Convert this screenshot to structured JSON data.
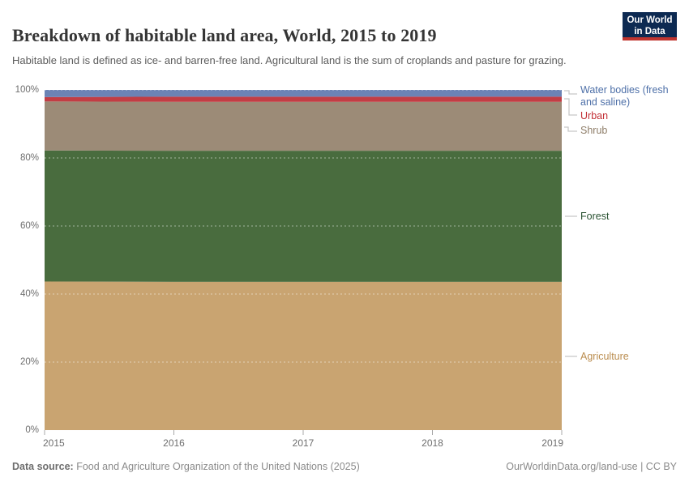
{
  "header": {
    "title": "Breakdown of habitable land area, World, 2015 to 2019",
    "subtitle": "Habitable land is defined as ice- and barren-free land. Agricultural land is the sum of croplands and pasture for grazing.",
    "logo": {
      "line1": "Our World",
      "line2": "in Data",
      "bg_color": "#0d2a52",
      "stripe_color": "#c0352f"
    }
  },
  "chart_data": {
    "type": "area",
    "stacked": true,
    "title": "Breakdown of habitable land area, World, 2015 to 2019",
    "x": [
      2015,
      2016,
      2017,
      2018,
      2019
    ],
    "x_tick_labels": [
      "2015",
      "2016",
      "2017",
      "2018",
      "2019"
    ],
    "y_tick_labels": [
      "0%",
      "20%",
      "40%",
      "60%",
      "80%",
      "100%"
    ],
    "y_tick_values": [
      0,
      20,
      40,
      60,
      80,
      100
    ],
    "ylim": [
      0,
      100
    ],
    "unit": "%",
    "grid": "horizontal-dashed",
    "legend_position": "right",
    "series": [
      {
        "name": "Agriculture",
        "values": [
          43.7,
          43.6,
          43.6,
          43.6,
          43.6
        ],
        "color": "#c9a471",
        "label_color": "#ba8c4e"
      },
      {
        "name": "Forest",
        "values": [
          38.5,
          38.5,
          38.5,
          38.5,
          38.5
        ],
        "color": "#496c3e",
        "label_color": "#2a5232"
      },
      {
        "name": "Shrub",
        "values": [
          14.4,
          14.4,
          14.4,
          14.4,
          14.4
        ],
        "color": "#9c8b77",
        "label_color": "#8e7d68"
      },
      {
        "name": "Urban",
        "values": [
          1.3,
          1.5,
          1.5,
          1.5,
          1.5
        ],
        "color": "#c23d44",
        "label_color": "#c22f35"
      },
      {
        "name": "Water bodies (fresh and saline)",
        "values": [
          2.1,
          2.0,
          2.0,
          2.0,
          2.0
        ],
        "color": "#6c83b5",
        "label_color": "#4e70a8",
        "label_lines": [
          "Water bodies (fresh",
          "and saline)"
        ]
      }
    ]
  },
  "footer": {
    "datasource_label": "Data source:",
    "datasource": "Food and Agriculture Organization of the United Nations (2025)",
    "link": "OurWorldinData.org/land-use | CC BY"
  }
}
